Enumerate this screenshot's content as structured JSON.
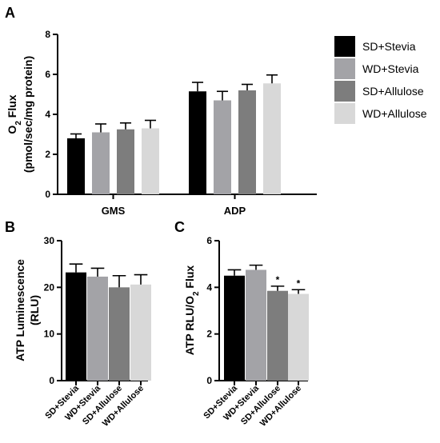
{
  "colors": {
    "SD+Stevia": "#000000",
    "WD+Stevia": "#a3a3a7",
    "SD+Allulose": "#7d7d7d",
    "WD+Allulose": "#d8d8d8"
  },
  "legend": [
    "SD+Stevia",
    "WD+Stevia",
    "SD+Allulose",
    "WD+Allulose"
  ],
  "chart_data": [
    {
      "panel": "A",
      "type": "bar",
      "categories": [
        "GMS",
        "ADP"
      ],
      "ylabel_line1": "O",
      "ylabel_sub": "2",
      "ylabel_line1_rest": " Flux",
      "ylabel_line2": "(pmol/sec/mg protein)",
      "ylim": [
        0,
        8
      ],
      "yticks": [
        0,
        2,
        4,
        6,
        8
      ],
      "series": [
        {
          "name": "SD+Stevia",
          "values": [
            2.8,
            5.15
          ],
          "errors": [
            0.22,
            0.45
          ]
        },
        {
          "name": "WD+Stevia",
          "values": [
            3.1,
            4.7
          ],
          "errors": [
            0.42,
            0.45
          ]
        },
        {
          "name": "SD+Allulose",
          "values": [
            3.25,
            5.2
          ],
          "errors": [
            0.32,
            0.3
          ]
        },
        {
          "name": "WD+Allulose",
          "values": [
            3.3,
            5.55
          ],
          "errors": [
            0.4,
            0.42
          ]
        }
      ]
    },
    {
      "panel": "B",
      "type": "bar",
      "categories": [
        "SD+Stevia",
        "WD+Stevia",
        "SD+Allulose",
        "WD+Allulose"
      ],
      "ylabel_line1": "ATP Luminescence",
      "ylabel_line2": "(RLU)",
      "ylim": [
        0,
        30
      ],
      "yticks": [
        0,
        10,
        20,
        30
      ],
      "values": [
        23.2,
        22.3,
        20.0,
        20.6
      ],
      "errors": [
        1.8,
        1.8,
        2.5,
        2.1
      ],
      "annotations": [
        "",
        "",
        "",
        ""
      ]
    },
    {
      "panel": "C",
      "type": "bar",
      "categories": [
        "SD+Stevia",
        "WD+Stevia",
        "SD+Allulose",
        "WD+Allulose"
      ],
      "ylabel_line1": "ATP RLU/O",
      "ylabel_sub": "2",
      "ylabel_line1_rest": " Flux",
      "ylim": [
        0,
        6
      ],
      "yticks": [
        0,
        2,
        4,
        6
      ],
      "values": [
        4.5,
        4.75,
        3.85,
        3.72
      ],
      "errors": [
        0.25,
        0.2,
        0.2,
        0.18
      ],
      "annotations": [
        "",
        "",
        "*",
        "*"
      ]
    }
  ]
}
